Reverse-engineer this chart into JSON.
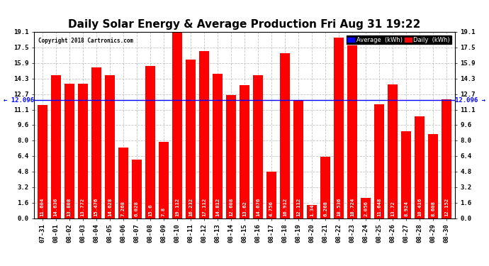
{
  "title": "Daily Solar Energy & Average Production Fri Aug 31 19:22",
  "copyright": "Copyright 2018 Cartronics.com",
  "categories": [
    "07-31",
    "08-01",
    "08-02",
    "08-03",
    "08-04",
    "08-05",
    "08-06",
    "08-07",
    "08-08",
    "08-09",
    "08-10",
    "08-11",
    "08-12",
    "08-13",
    "08-14",
    "08-15",
    "08-16",
    "08-17",
    "08-18",
    "08-19",
    "08-20",
    "08-21",
    "08-22",
    "08-23",
    "08-24",
    "08-25",
    "08-26",
    "08-27",
    "08-28",
    "08-29",
    "08-30"
  ],
  "values": [
    11.604,
    14.636,
    13.808,
    13.772,
    15.476,
    14.628,
    7.268,
    6.028,
    15.6,
    7.8,
    19.112,
    16.232,
    17.112,
    14.812,
    12.608,
    13.62,
    14.676,
    4.756,
    16.912,
    12.112,
    1.348,
    6.268,
    18.536,
    18.724,
    2.056,
    11.648,
    13.72,
    8.924,
    10.416,
    8.608,
    12.152
  ],
  "average": 12.096,
  "bar_color": "#ff0000",
  "average_line_color": "#0000ff",
  "background_color": "#ffffff",
  "grid_color": "#aaaaaa",
  "ylim": [
    0.0,
    19.1
  ],
  "yticks": [
    0.0,
    1.6,
    3.2,
    4.8,
    6.4,
    8.0,
    9.6,
    11.1,
    12.7,
    14.3,
    15.9,
    17.5,
    19.1
  ],
  "ytick_labels": [
    "0.0",
    "1.6",
    "3.2",
    "4.8",
    "6.4",
    "8.0",
    "9.6",
    "11.1",
    "12.7",
    "14.3",
    "15.9",
    "17.5",
    "19.1"
  ],
  "title_fontsize": 11,
  "bar_label_fontsize": 5.2,
  "tick_fontsize": 6.5,
  "legend_avg_color": "#0000ff",
  "legend_daily_color": "#ff0000",
  "legend_avg_label": "Average  (kWh)",
  "legend_daily_label": "Daily  (kWh)",
  "avg_label_left": "← 12.096",
  "avg_label_right": "12.096 →"
}
